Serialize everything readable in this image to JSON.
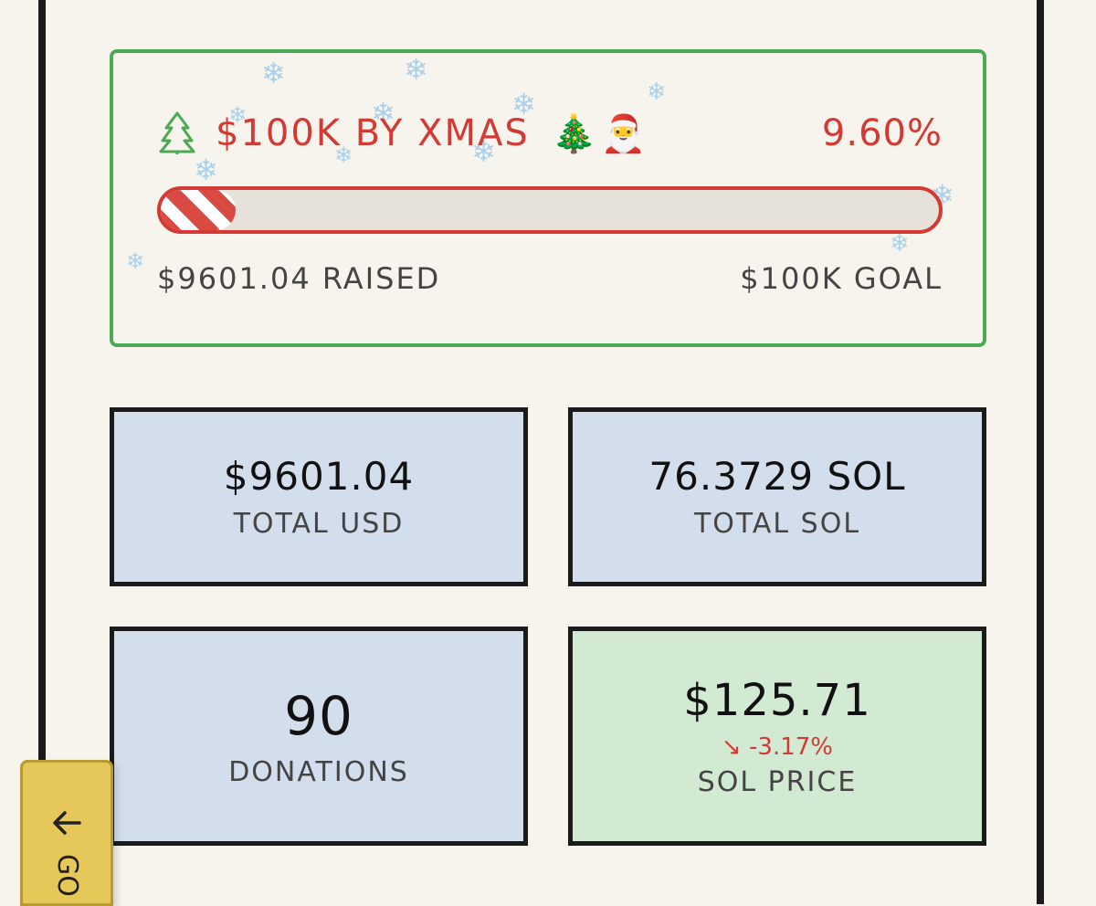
{
  "goal": {
    "title": "$100K BY XMAS",
    "tree_emoji": "🎄",
    "santa_emoji": "🎅",
    "percent_label": "9.60%",
    "progress_fraction": 0.096,
    "raised_label": "$9601.04 RAISED",
    "goal_label": "$100K GOAL"
  },
  "stats": {
    "total_usd": {
      "value": "$9601.04",
      "label": "TOTAL USD"
    },
    "total_sol": {
      "value": "76.3729 SOL",
      "label": "TOTAL SOL"
    },
    "donations": {
      "value": "90",
      "label": "DONATIONS"
    },
    "sol_price": {
      "value": "$125.71",
      "change": "↘ -3.17%",
      "label": "SOL PRICE"
    }
  },
  "side_tab": {
    "label": "GO"
  },
  "colors": {
    "accent_red": "#d23a33",
    "accent_green": "#4caa57",
    "card_blue": "#d3deec",
    "card_green": "#d2ead2"
  }
}
